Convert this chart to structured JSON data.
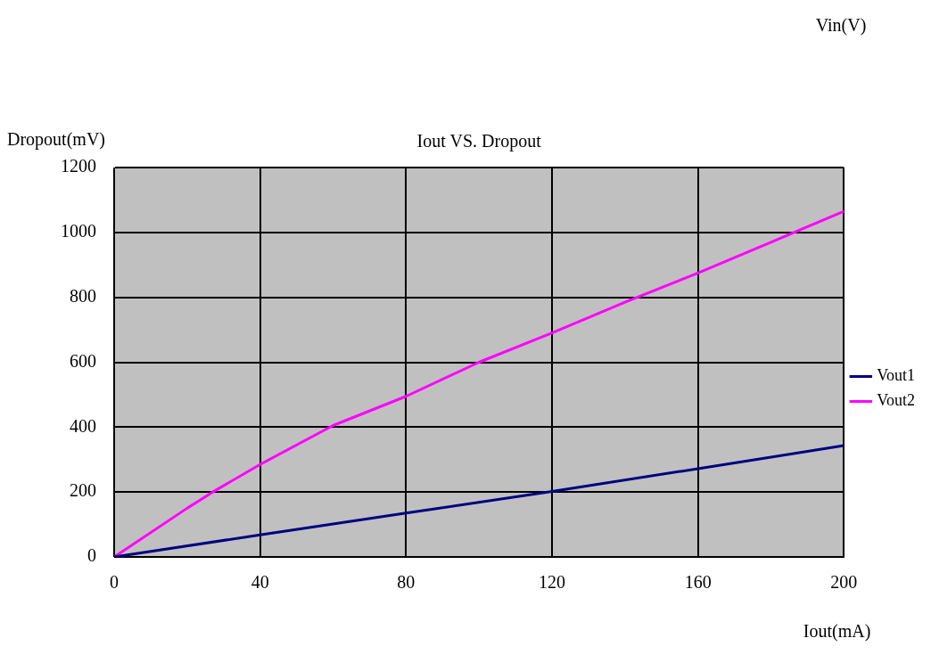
{
  "chart_data": {
    "type": "line",
    "title": "Iout VS. Dropout",
    "xlabel": "Iout(mA)",
    "ylabel": "Dropout(mV)",
    "annotations": [
      "Vin(V)"
    ],
    "x": [
      0,
      20,
      27,
      40,
      60,
      80,
      100,
      120,
      140,
      160,
      180,
      200
    ],
    "series": [
      {
        "name": "Vout1",
        "color": "#000080",
        "x": [
          0,
          40,
          80,
          120,
          160,
          200
        ],
        "values": [
          0,
          68,
          135,
          202,
          272,
          343
        ]
      },
      {
        "name": "Vout2",
        "color": "#ff00ff",
        "values": [
          0,
          150,
          200,
          285,
          405,
          495,
          600,
          690,
          785,
          875,
          970,
          1065
        ]
      }
    ],
    "xlim": [
      0,
      200
    ],
    "xticks": [
      0,
      40,
      80,
      120,
      160,
      200
    ],
    "ylim": [
      0,
      1200
    ],
    "yticks": [
      0,
      200,
      400,
      600,
      800,
      1000,
      1200
    ],
    "grid": true,
    "legend": "right",
    "marker": "none",
    "line_style": "solid"
  }
}
